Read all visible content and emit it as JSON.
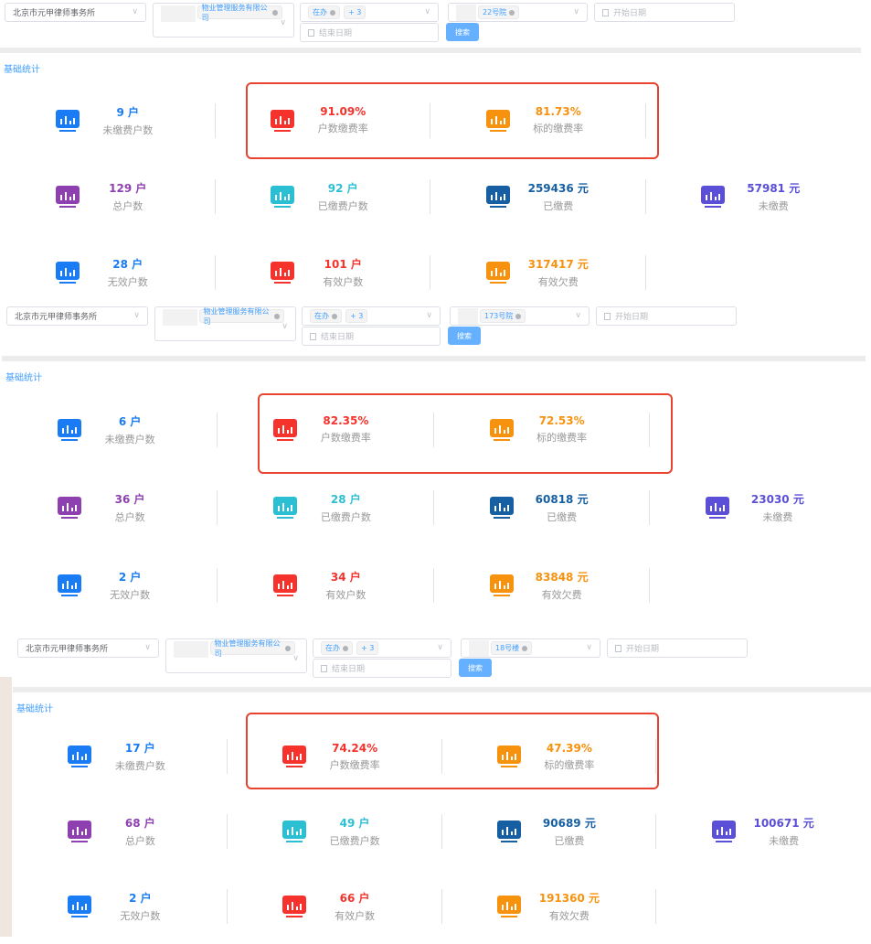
{
  "filters_common": {
    "org": "北京市元甲律师事务所",
    "company_tag": "物业管理服务有限公司",
    "status_tag": "在办",
    "status_more": "+ 3",
    "end_date_placeholder": "结束日期",
    "start_date_placeholder": "开始日期",
    "search_label": "搜索"
  },
  "section_title": "基础统计",
  "labels": [
    "未缴费户数",
    "户数缴费率",
    "标的缴费率",
    "总户数",
    "已缴费户数",
    "已缴费",
    "未缴费",
    "无效户数",
    "有效户数",
    "有效欠费"
  ],
  "colors": [
    "#1a7cf4",
    "#f5322b",
    "#f7920f",
    "#8e3fb0",
    "#2bbfd3",
    "#165fa3",
    "#5a4fd6",
    "#1a7cf4",
    "#f5322b",
    "#f7920f"
  ],
  "icon": "bar-chart-monitor-icon",
  "panels": [
    {
      "building_tag": "22号院",
      "values": [
        "9 户",
        "91.09%",
        "81.73%",
        "129 户",
        "92 户",
        "259436 元",
        "57981 元",
        "28 户",
        "101 户",
        "317417 元"
      ]
    },
    {
      "building_tag": "173号院",
      "values": [
        "6 户",
        "82.35%",
        "72.53%",
        "36 户",
        "28 户",
        "60818 元",
        "23030 元",
        "2 户",
        "34 户",
        "83848 元"
      ]
    },
    {
      "building_tag": "18号楼",
      "values": [
        "17 户",
        "74.24%",
        "47.39%",
        "68 户",
        "49 户",
        "90689 元",
        "100671 元",
        "2 户",
        "66 户",
        "191360 元"
      ]
    }
  ]
}
